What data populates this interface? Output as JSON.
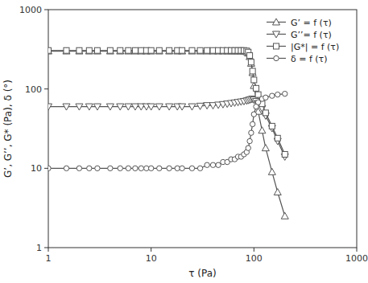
{
  "chart_data": {
    "type": "line",
    "title": "",
    "xlabel": "τ (Pa)",
    "ylabel": "G’, G’’, G* (Pa), δ (°)",
    "log": true,
    "grid": false,
    "legend": "upper right",
    "xlim": [
      1,
      1000
    ],
    "ylim": [
      1,
      1000
    ],
    "xticks": [
      1,
      10,
      100,
      1000
    ],
    "yticks": [
      1,
      10,
      100,
      1000
    ],
    "x": [
      1,
      1.5,
      2,
      2.5,
      3,
      4,
      5,
      6,
      7,
      8,
      9,
      10,
      12,
      15,
      18,
      20,
      25,
      30,
      35,
      40,
      45,
      50,
      55,
      60,
      65,
      70,
      75,
      80,
      85,
      88,
      91,
      94,
      97,
      100,
      105,
      110,
      120,
      130,
      150,
      170,
      200
    ],
    "series": [
      {
        "name": "G’ = f (τ)",
        "color": "#555555",
        "marker": "triangle-up",
        "values": [
          300,
          300,
          300,
          300,
          300,
          300,
          300,
          300,
          300,
          300,
          300,
          300,
          300,
          300,
          300,
          300,
          300,
          300,
          300,
          300,
          300,
          300,
          300,
          300,
          300,
          300,
          300,
          298,
          293,
          282,
          255,
          210,
          160,
          110,
          75,
          52,
          30,
          18,
          9,
          5,
          2.5
        ]
      },
      {
        "name": "G’’= f (τ)",
        "color": "#555555",
        "marker": "triangle-down",
        "values": [
          60,
          60,
          60,
          60,
          60,
          60,
          60,
          60,
          60,
          60,
          60,
          60,
          60,
          60,
          60,
          60,
          60,
          61,
          62,
          62,
          63,
          64,
          65,
          66,
          67,
          68,
          69,
          70,
          71,
          72,
          73,
          74,
          75,
          73,
          70,
          66,
          57,
          46,
          32,
          22,
          14
        ]
      },
      {
        "name": "|G*| = f (τ)",
        "color": "#555555",
        "marker": "square",
        "values": [
          306,
          306,
          306,
          306,
          306,
          306,
          306,
          306,
          306,
          306,
          306,
          306,
          306,
          306,
          306,
          306,
          306,
          306,
          306,
          306,
          306,
          306,
          306,
          306,
          306,
          306,
          306,
          306,
          302,
          292,
          264,
          218,
          168,
          130,
          102,
          85,
          65,
          50,
          34,
          24,
          15
        ]
      },
      {
        "name": "δ = f (τ)",
        "color": "#555555",
        "marker": "circle",
        "values": [
          10,
          10,
          10,
          10,
          10,
          10,
          10,
          10,
          10,
          10,
          10,
          10,
          10,
          10,
          10,
          10,
          10,
          10,
          11,
          11,
          11,
          12,
          12,
          13,
          13,
          14,
          14,
          15,
          16,
          18,
          22,
          28,
          36,
          48,
          60,
          68,
          75,
          78,
          82,
          85,
          87
        ]
      }
    ]
  }
}
